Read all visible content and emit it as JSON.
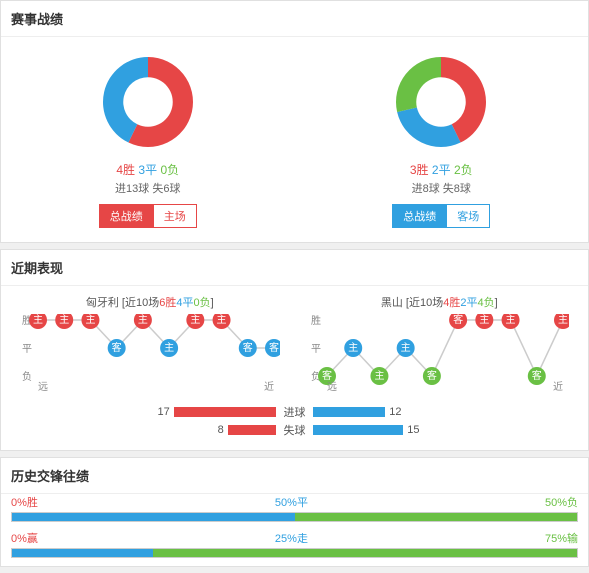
{
  "colors": {
    "red": "#e64646",
    "blue": "#30a0e0",
    "green": "#6ac044",
    "grey": "#cccccc",
    "panel_border": "#e0e0e0",
    "text": "#333333",
    "muted": "#888888"
  },
  "match_record": {
    "title": "赛事战绩",
    "left": {
      "donut": {
        "win": 4,
        "draw": 3,
        "lose": 0,
        "inner_ratio": 0.55
      },
      "stats": {
        "win_label": "4胜",
        "draw_label": "3平",
        "lose_label": "0负"
      },
      "goals": "进13球 失6球",
      "buttons": {
        "a": "总战绩",
        "b": "主场",
        "active_bg": "#e64646",
        "border": "#e64646"
      }
    },
    "right": {
      "donut": {
        "win": 3,
        "draw": 2,
        "lose": 2,
        "inner_ratio": 0.55
      },
      "stats": {
        "win_label": "3胜",
        "draw_label": "2平",
        "lose_label": "2负"
      },
      "goals": "进8球 失8球",
      "buttons": {
        "a": "总战绩",
        "b": "客场",
        "active_bg": "#30a0e0",
        "border": "#30a0e0"
      }
    }
  },
  "recent_form": {
    "title": "近期表现",
    "wdl_labels": [
      "胜",
      "平",
      "负"
    ],
    "far_label": "远",
    "near_label": "近",
    "left": {
      "team": "匈牙利",
      "prefix": "[近10场",
      "rec_w": "6胜",
      "rec_d": "4平",
      "rec_l": "0负",
      "suffix": "]",
      "points": [
        {
          "r": "W",
          "t": "主"
        },
        {
          "r": "W",
          "t": "主"
        },
        {
          "r": "W",
          "t": "主"
        },
        {
          "r": "D",
          "t": "客"
        },
        {
          "r": "W",
          "t": "主"
        },
        {
          "r": "D",
          "t": "主"
        },
        {
          "r": "W",
          "t": "主"
        },
        {
          "r": "W",
          "t": "主"
        },
        {
          "r": "D",
          "t": "客"
        },
        {
          "r": "D",
          "t": "客"
        }
      ]
    },
    "right": {
      "team": "黑山",
      "prefix": "[近10场",
      "rec_w": "4胜",
      "rec_d": "2平",
      "rec_l": "4负",
      "suffix": "]",
      "points": [
        {
          "r": "L",
          "t": "客"
        },
        {
          "r": "D",
          "t": "主"
        },
        {
          "r": "L",
          "t": "主"
        },
        {
          "r": "D",
          "t": "主"
        },
        {
          "r": "L",
          "t": "客"
        },
        {
          "r": "W",
          "t": "客"
        },
        {
          "r": "W",
          "t": "主"
        },
        {
          "r": "W",
          "t": "主"
        },
        {
          "r": "L",
          "t": "客"
        },
        {
          "r": "W",
          "t": "主"
        }
      ]
    },
    "bars": {
      "goals": {
        "label": "进球",
        "left_val": 17,
        "right_val": 12,
        "max": 20
      },
      "concede": {
        "label": "失球",
        "left_val": 8,
        "right_val": 15,
        "max": 20
      }
    }
  },
  "history": {
    "title": "历史交锋往绩",
    "row1": {
      "labels": [
        "0%胜",
        "50%平",
        "50%负"
      ],
      "segs": [
        {
          "pct": 0,
          "color": "#e64646"
        },
        {
          "pct": 50,
          "color": "#30a0e0"
        },
        {
          "pct": 50,
          "color": "#6ac044"
        }
      ]
    },
    "row2": {
      "labels": [
        "0%赢",
        "25%走",
        "75%输"
      ],
      "segs": [
        {
          "pct": 0,
          "color": "#e64646"
        },
        {
          "pct": 25,
          "color": "#30a0e0"
        },
        {
          "pct": 75,
          "color": "#6ac044"
        }
      ]
    }
  }
}
